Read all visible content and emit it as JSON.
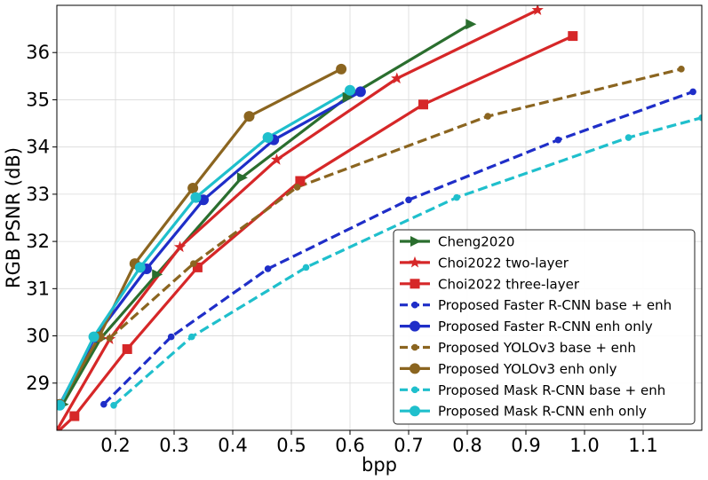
{
  "chart_data": {
    "type": "line",
    "title": "",
    "xlabel": "bpp",
    "ylabel": "RGB PSNR (dB)",
    "xlim": [
      0.1,
      1.2
    ],
    "ylim": [
      28.0,
      37.0
    ],
    "xticks": [
      0.2,
      0.3,
      0.4,
      0.5,
      0.6,
      0.7,
      0.8,
      0.9,
      1.0,
      1.1
    ],
    "yticks": [
      29,
      30,
      31,
      32,
      33,
      34,
      35,
      36
    ],
    "xtick_labels": [
      "0.2",
      "0.3",
      "0.4",
      "0.5",
      "0.6",
      "0.7",
      "0.8",
      "0.9",
      "1.0",
      "1.1"
    ],
    "ytick_labels": [
      "29",
      "30",
      "31",
      "32",
      "33",
      "34",
      "35",
      "36"
    ],
    "grid": true,
    "legend_position": "bottom-right",
    "series": [
      {
        "name": "Cheng2020",
        "color": "#2a6e2e",
        "dash": "solid",
        "marker": "triangle-right",
        "x": [
          0.11,
          0.175,
          0.27,
          0.415,
          0.595,
          0.805
        ],
        "y": [
          28.55,
          29.95,
          31.3,
          33.35,
          35.05,
          36.6
        ]
      },
      {
        "name": "Choi2022 two-layer",
        "color": "#d62728",
        "dash": "solid",
        "marker": "star",
        "x": [
          0.1,
          0.19,
          0.31,
          0.475,
          0.68,
          0.92
        ],
        "y": [
          28.0,
          29.93,
          31.88,
          33.73,
          35.45,
          36.9
        ]
      },
      {
        "name": "Choi2022 three-layer",
        "color": "#d62728",
        "dash": "solid",
        "marker": "square",
        "x": [
          0.1,
          0.13,
          0.22,
          0.34,
          0.515,
          0.725,
          0.98
        ],
        "y": [
          27.95,
          28.3,
          29.72,
          31.45,
          33.28,
          34.9,
          36.35
        ]
      },
      {
        "name": "Proposed Faster R-CNN base + enh",
        "color": "#1f2ec8",
        "dash": "dashed",
        "marker": "small-circle",
        "x": [
          0.18,
          0.295,
          0.46,
          0.7,
          0.955,
          1.185
        ],
        "y": [
          28.55,
          29.98,
          31.42,
          32.88,
          34.15,
          35.17
        ]
      },
      {
        "name": "Proposed Faster R-CNN enh only",
        "color": "#1f2ec8",
        "dash": "solid",
        "marker": "circle",
        "x": [
          0.105,
          0.165,
          0.253,
          0.35,
          0.47,
          0.618
        ],
        "y": [
          28.55,
          29.97,
          31.42,
          32.88,
          34.15,
          35.17
        ]
      },
      {
        "name": "Proposed YOLOv3 base + enh",
        "color": "#8b6520",
        "dash": "dashed",
        "marker": "small-circle",
        "x": [
          0.19,
          0.333,
          0.51,
          0.835,
          1.165
        ],
        "y": [
          29.95,
          31.53,
          33.15,
          34.65,
          35.65
        ]
      },
      {
        "name": "Proposed YOLOv3 enh only",
        "color": "#8b6520",
        "dash": "solid",
        "marker": "circle",
        "x": [
          0.105,
          0.172,
          0.233,
          0.332,
          0.428,
          0.585
        ],
        "y": [
          28.55,
          29.98,
          31.53,
          33.13,
          34.65,
          35.65
        ]
      },
      {
        "name": "Proposed Mask R-CNN base + enh",
        "color": "#1fbfcc",
        "dash": "dashed",
        "marker": "small-circle",
        "x": [
          0.197,
          0.33,
          0.525,
          0.782,
          1.075,
          1.2
        ],
        "y": [
          28.53,
          29.98,
          31.45,
          32.93,
          34.2,
          34.62
        ]
      },
      {
        "name": "Proposed Mask R-CNN enh only",
        "color": "#1fbfcc",
        "dash": "solid",
        "marker": "circle",
        "x": [
          0.105,
          0.163,
          0.242,
          0.337,
          0.46,
          0.6
        ],
        "y": [
          28.53,
          29.98,
          31.45,
          32.93,
          34.2,
          35.2
        ]
      }
    ]
  }
}
